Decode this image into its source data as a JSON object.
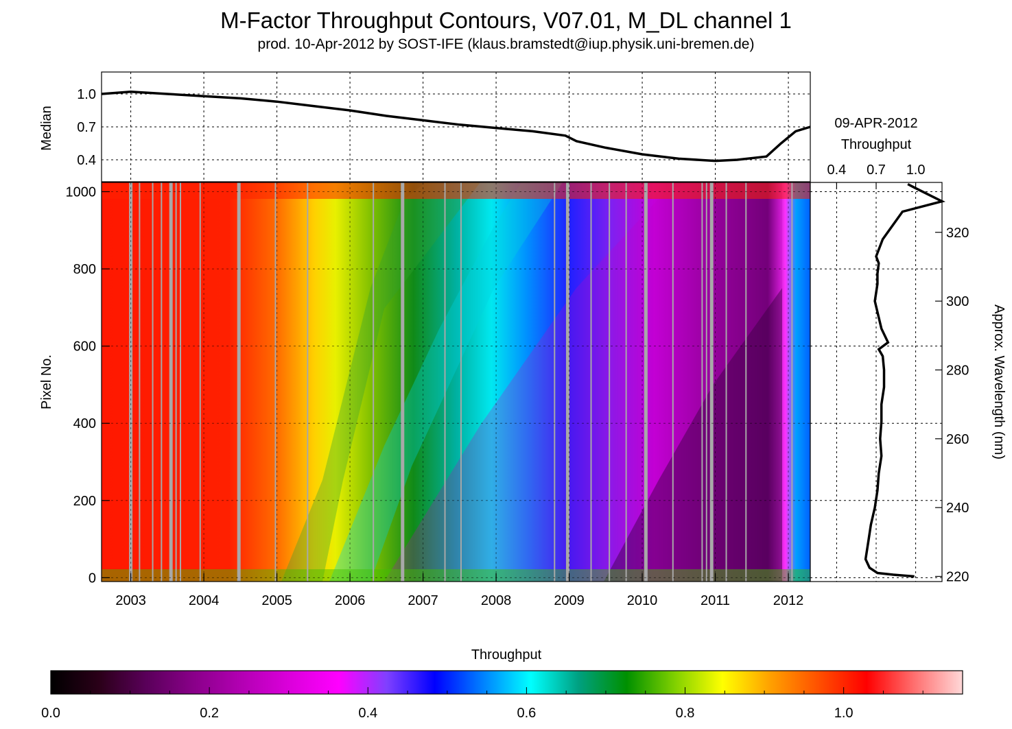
{
  "title": "M-Factor Throughput Contours, V07.01, M_DL channel 1",
  "subtitle": "prod. 10-Apr-2012 by SOST-IFE (klaus.bramstedt@iup.physik.uni-bremen.de)",
  "chart_data": [
    {
      "type": "line",
      "panel": "median-time-series",
      "ylabel": "Median",
      "ylim": [
        0.2,
        1.2
      ],
      "xlim": [
        2002.6,
        2012.3
      ],
      "yticks": [
        0.4,
        0.7,
        1.0
      ],
      "grid": true,
      "x": [
        2002.6,
        2003.0,
        2003.5,
        2004.0,
        2004.5,
        2005.0,
        2005.5,
        2006.0,
        2006.5,
        2007.0,
        2007.5,
        2008.0,
        2008.5,
        2008.95,
        2009.1,
        2009.5,
        2010.0,
        2010.5,
        2011.0,
        2011.3,
        2011.7,
        2011.9,
        2012.1,
        2012.3
      ],
      "y": [
        1.0,
        1.02,
        1.0,
        0.98,
        0.96,
        0.93,
        0.89,
        0.85,
        0.8,
        0.76,
        0.72,
        0.69,
        0.66,
        0.62,
        0.57,
        0.51,
        0.45,
        0.41,
        0.39,
        0.4,
        0.43,
        0.55,
        0.66,
        0.7
      ]
    },
    {
      "type": "heatmap",
      "panel": "throughput-contours",
      "xlabel": "",
      "ylabel": "Pixel No.",
      "xlim": [
        2002.6,
        2012.3
      ],
      "ylim": [
        -10,
        1024
      ],
      "xticks": [
        "2003",
        "2004",
        "2005",
        "2006",
        "2007",
        "2008",
        "2009",
        "2010",
        "2011",
        "2012"
      ],
      "yticks": [
        0,
        200,
        400,
        600,
        800,
        1000
      ],
      "grid": true,
      "data_gaps_years": [
        2003.0,
        2003.12,
        2003.3,
        2003.42,
        2003.55,
        2003.62,
        2003.68,
        2003.95,
        2004.48,
        2004.98,
        2005.42,
        2006.32,
        2006.72,
        2007.3,
        2007.52,
        2008.8,
        2008.98,
        2009.3,
        2009.55,
        2009.78,
        2010.05,
        2010.42,
        2010.82,
        2010.88,
        2010.95,
        2011.15,
        2011.42,
        2012.05
      ]
    },
    {
      "type": "line",
      "panel": "current-spectrum",
      "title": "09-APR-2012",
      "xlabel": "Throughput",
      "ylabel": "Approx. Wavelength (nm)",
      "xlim": [
        0.2,
        1.2
      ],
      "xticks": [
        0.4,
        0.7,
        1.0
      ],
      "ylim": [
        218.5,
        334.5
      ],
      "yticks": [
        220,
        240,
        260,
        280,
        300,
        320
      ],
      "grid": true,
      "x": [
        0.99,
        0.83,
        0.71,
        0.65,
        0.62,
        0.64,
        0.66,
        0.69,
        0.71,
        0.72,
        0.74,
        0.73,
        0.74,
        0.74,
        0.76,
        0.76,
        0.75,
        0.72,
        0.79,
        0.74,
        0.69,
        0.71,
        0.71,
        0.72,
        0.7,
        0.75,
        0.9,
        1.2,
        0.99,
        0.94
      ],
      "y": [
        220,
        220.5,
        221,
        222.5,
        225,
        230,
        235,
        240,
        245,
        250,
        255,
        260,
        265,
        270,
        275,
        280,
        284,
        286,
        288,
        292,
        300,
        305,
        308,
        311,
        313,
        318,
        326,
        329,
        333,
        334
      ]
    },
    {
      "type": "heatmap",
      "panel": "colorbar",
      "title": "Throughput",
      "xlim": [
        0.0,
        1.15
      ],
      "xticks": [
        "0.0",
        "0.2",
        "0.4",
        "0.6",
        "0.8",
        "1.0"
      ],
      "colorscale": [
        "#000000",
        "#2a0018",
        "#5a005a",
        "#8a008a",
        "#b400b4",
        "#dc00dc",
        "#ff00ff",
        "#8040ff",
        "#0000ff",
        "#0080ff",
        "#00ffff",
        "#00a080",
        "#009000",
        "#80d000",
        "#ffff00",
        "#ffa000",
        "#ff5000",
        "#ff0000",
        "#ff7070",
        "#ffd8d8"
      ]
    }
  ]
}
